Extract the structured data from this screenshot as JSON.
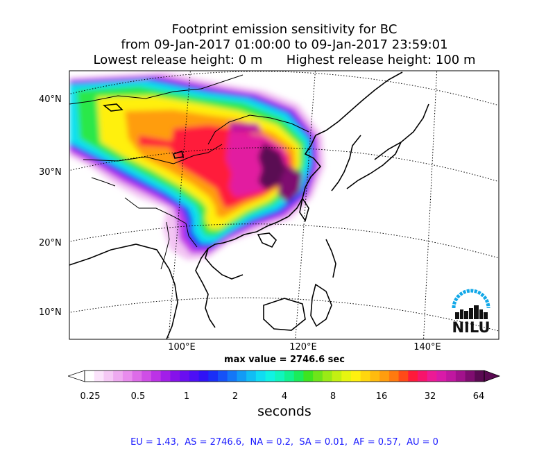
{
  "title": {
    "line1": "Footprint emission sensitivity for BC",
    "line2": "from 09-Jan-2017 01:00:00 to 09-Jan-2017 23:59:01",
    "line3": "Lowest release height: 0 m      Highest release height: 100 m"
  },
  "map": {
    "region": "East Asia",
    "projection": "conic",
    "lat_labels": [
      "40°N",
      "30°N",
      "20°N",
      "10°N"
    ],
    "lon_labels": [
      "100°E",
      "120°E",
      "140°E"
    ],
    "gridlines": "dotted"
  },
  "max_value_text": "max value = 2746.6 sec",
  "colorbar": {
    "tick_labels": [
      "0.25",
      "0.5",
      "1",
      "2",
      "4",
      "8",
      "16",
      "32",
      "64"
    ],
    "unit_label": "seconds",
    "scale": "log",
    "colors": [
      "#ffffff",
      "#fbe3fb",
      "#f5c8f5",
      "#eeaaf0",
      "#e88ced",
      "#dd6ce8",
      "#cf4ee6",
      "#bc33e6",
      "#a21fe8",
      "#8612ea",
      "#6a0ff0",
      "#4d0ff5",
      "#3013f6",
      "#1a2ff7",
      "#1652f7",
      "#1477f7",
      "#129bf6",
      "#11bdf4",
      "#10dcf2",
      "#10f2e3",
      "#10f5bd",
      "#10f28f",
      "#1aec5a",
      "#3ee41f",
      "#6ee41a",
      "#9aea16",
      "#c3f012",
      "#e6f510",
      "#fff00f",
      "#ffd60e",
      "#ffbb0e",
      "#ff9d0e",
      "#ff7a0f",
      "#ff4a18",
      "#ff1a3a",
      "#f7146b",
      "#ec1a95",
      "#d91aa8",
      "#c017a0",
      "#a2128c",
      "#7f0d70",
      "#5a0a52"
    ]
  },
  "logo_text": "NILU",
  "footer": "EU = 1.43,  AS = 2746.6,  NA = 0.2,  SA = 0.01,  AF = 0.57,  AU = 0"
}
